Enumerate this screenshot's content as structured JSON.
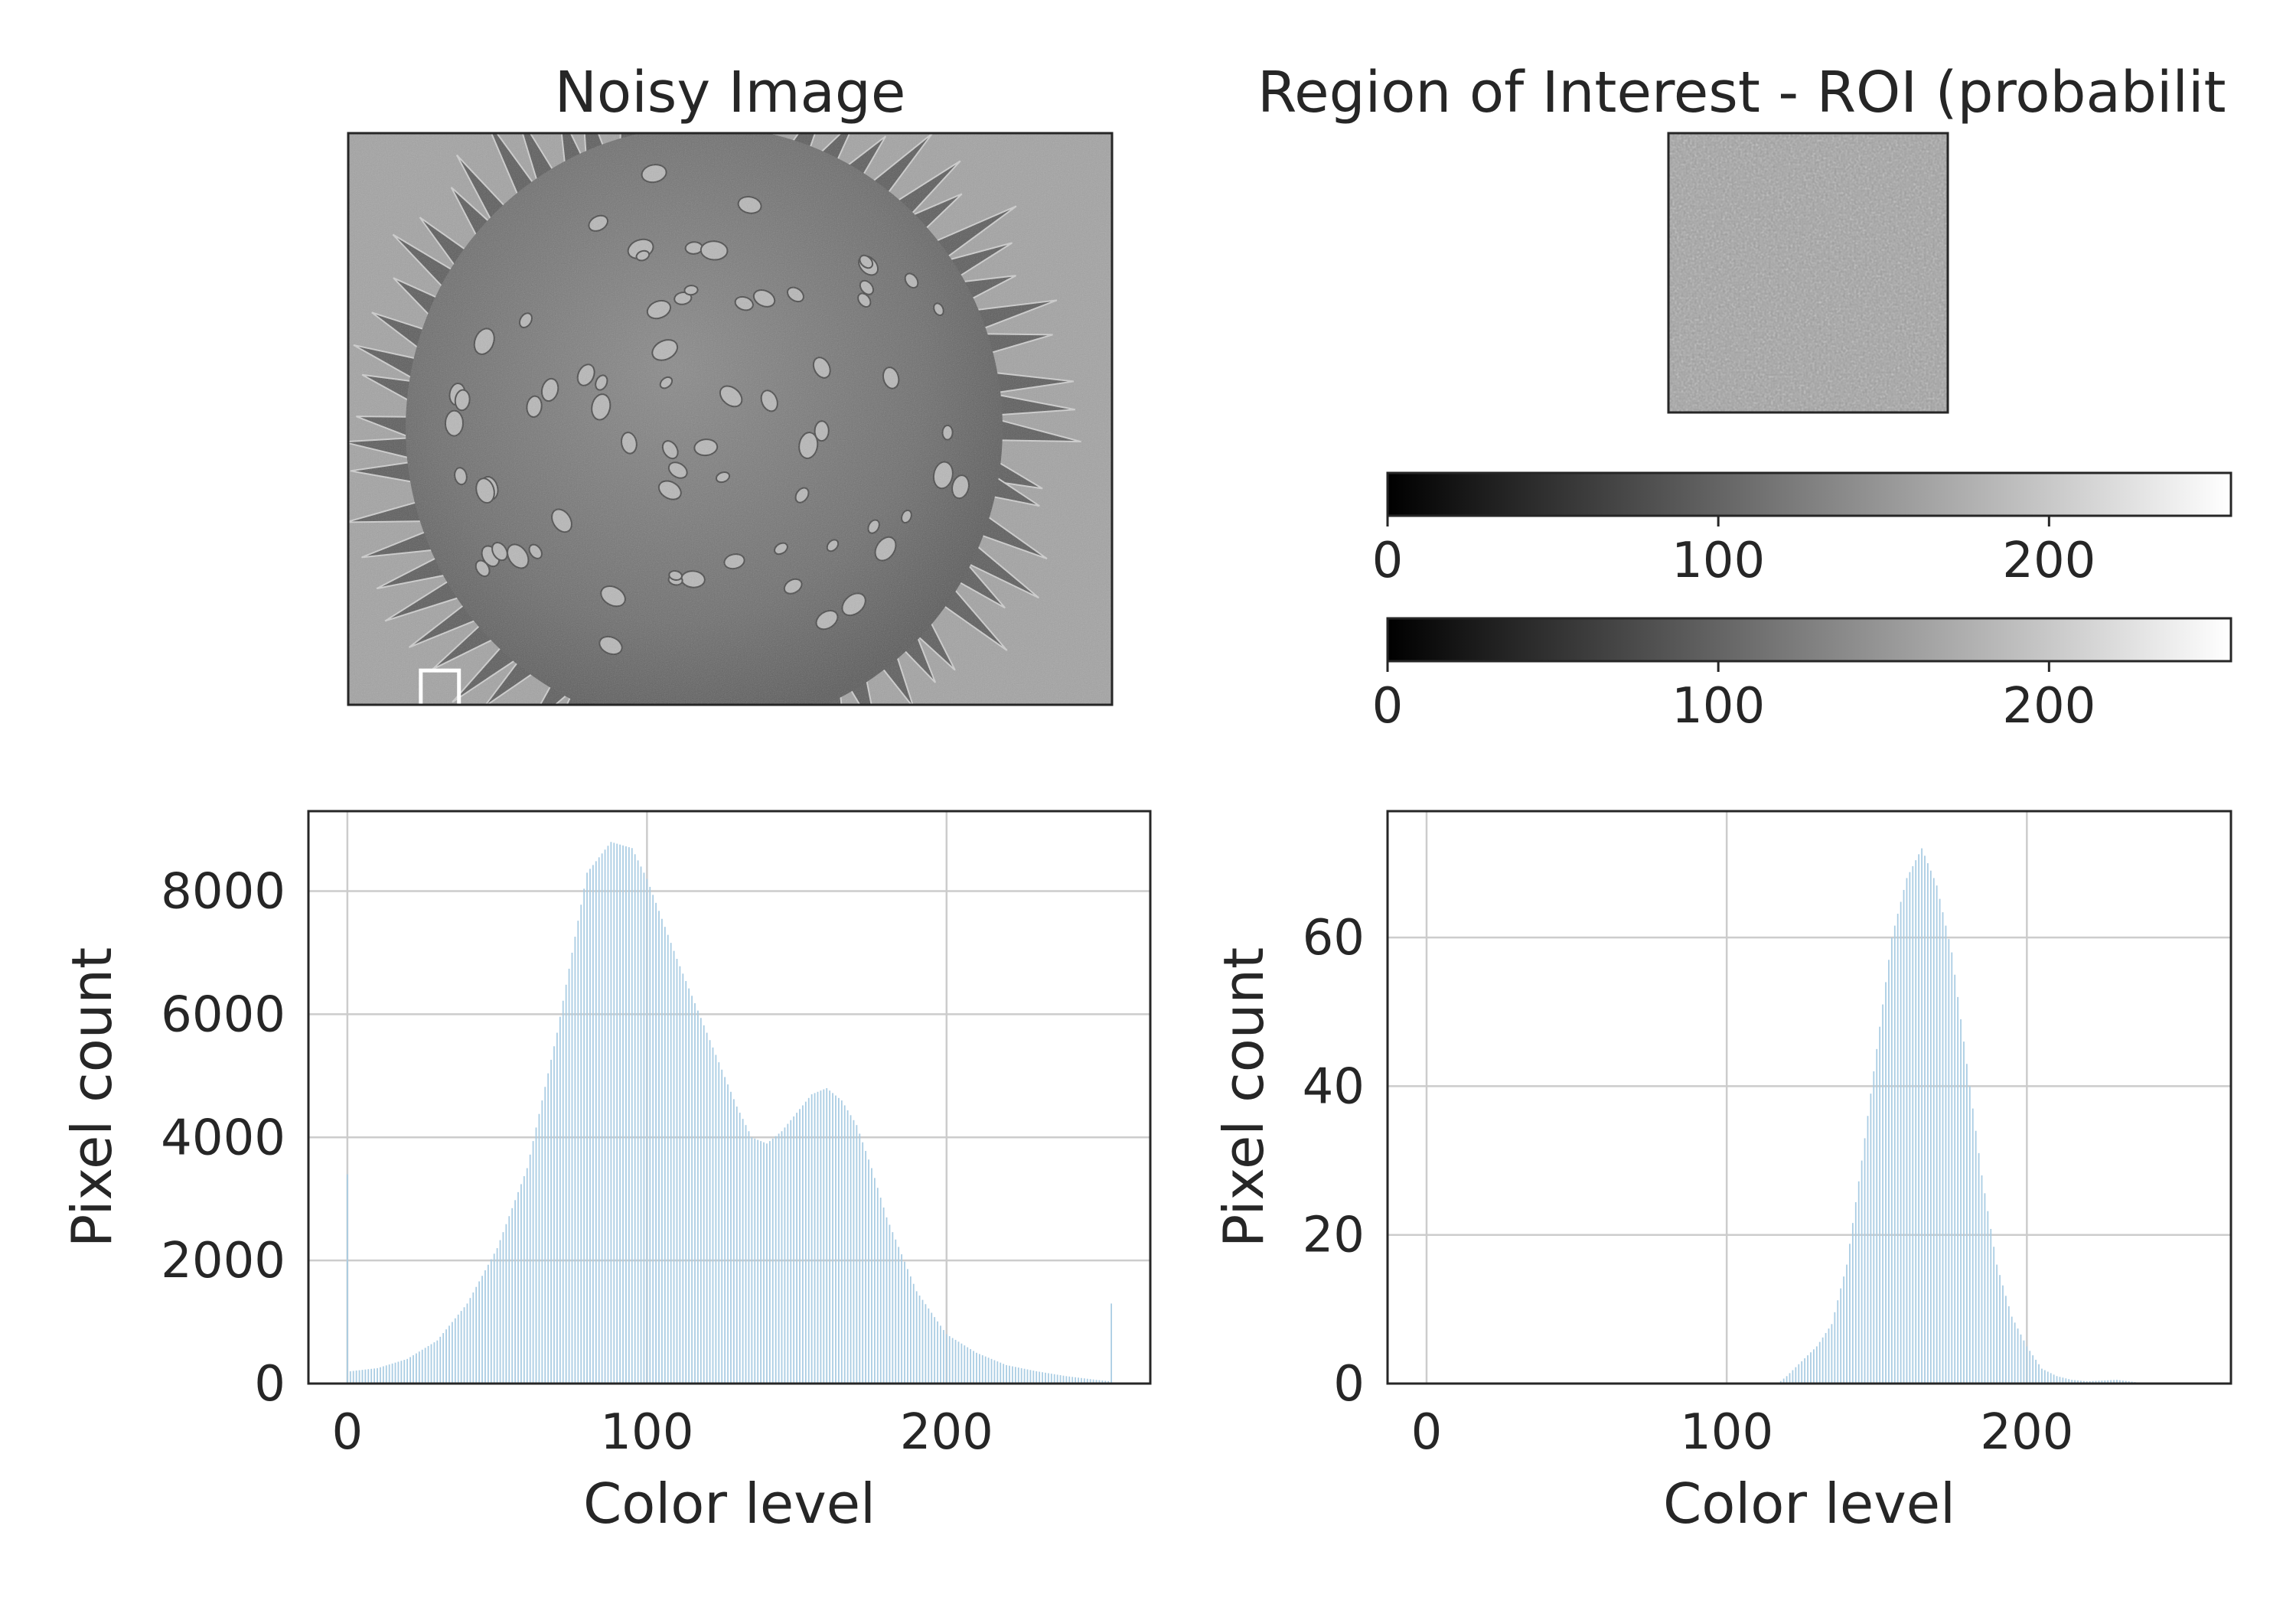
{
  "chart_data": [
    {
      "type": "heatmap",
      "title": "Noisy Image",
      "roi_marker": {
        "x_frac": 0.095,
        "y_frac": 0.94,
        "w_frac": 0.05,
        "h_frac": 0.06
      }
    },
    {
      "type": "heatmap",
      "title": "Region of Interest - ROI (probabilit",
      "colormap": "gray",
      "colorbars": [
        {
          "min": 0,
          "max": 255,
          "ticks": [
            0,
            100,
            200
          ]
        },
        {
          "min": 0,
          "max": 255,
          "ticks": [
            0,
            100,
            200
          ]
        }
      ]
    },
    {
      "type": "bar",
      "title": "",
      "xlabel": "Color level",
      "ylabel": "Pixel count",
      "xlim": [
        -13,
        268
      ],
      "ylim": [
        0,
        9300
      ],
      "xticks": [
        0,
        100,
        200
      ],
      "yticks": [
        0,
        2000,
        4000,
        6000,
        8000
      ],
      "grid": true,
      "color": "#a9cce3",
      "x": [
        0,
        255
      ],
      "keypoints": [
        [
          1,
          200
        ],
        [
          10,
          250
        ],
        [
          20,
          400
        ],
        [
          30,
          700
        ],
        [
          40,
          1300
        ],
        [
          50,
          2200
        ],
        [
          60,
          3500
        ],
        [
          70,
          5700
        ],
        [
          80,
          8300
        ],
        [
          88,
          8800
        ],
        [
          95,
          8700
        ],
        [
          100,
          8200
        ],
        [
          110,
          6900
        ],
        [
          120,
          5700
        ],
        [
          130,
          4500
        ],
        [
          135,
          4000
        ],
        [
          140,
          3900
        ],
        [
          145,
          4100
        ],
        [
          150,
          4400
        ],
        [
          155,
          4700
        ],
        [
          160,
          4800
        ],
        [
          165,
          4600
        ],
        [
          170,
          4200
        ],
        [
          175,
          3500
        ],
        [
          180,
          2700
        ],
        [
          190,
          1500
        ],
        [
          200,
          800
        ],
        [
          210,
          500
        ],
        [
          220,
          300
        ],
        [
          230,
          200
        ],
        [
          240,
          120
        ],
        [
          250,
          60
        ],
        [
          254,
          40
        ]
      ],
      "spikes": [
        {
          "x": 0,
          "value": 3400
        },
        {
          "x": 255,
          "value": 1300
        }
      ]
    },
    {
      "type": "bar",
      "title": "",
      "xlabel": "Color level",
      "ylabel": "Pixel count",
      "xlim": [
        -13,
        268
      ],
      "ylim": [
        0,
        77
      ],
      "xticks": [
        0,
        100,
        200
      ],
      "yticks": [
        0,
        20,
        40,
        60
      ],
      "grid": true,
      "color": "#a9cce3",
      "x": [
        0,
        255
      ],
      "keypoints": [
        [
          117,
          0
        ],
        [
          120,
          1
        ],
        [
          125,
          3
        ],
        [
          130,
          5
        ],
        [
          135,
          8
        ],
        [
          140,
          16
        ],
        [
          145,
          30
        ],
        [
          150,
          45
        ],
        [
          155,
          60
        ],
        [
          160,
          68
        ],
        [
          165,
          72
        ],
        [
          170,
          67
        ],
        [
          175,
          58
        ],
        [
          180,
          43
        ],
        [
          185,
          28
        ],
        [
          190,
          16
        ],
        [
          195,
          9
        ],
        [
          200,
          5
        ],
        [
          205,
          2
        ],
        [
          210,
          1
        ],
        [
          215,
          0.5
        ],
        [
          220,
          0.3
        ],
        [
          230,
          0.5
        ],
        [
          240,
          0
        ]
      ]
    }
  ]
}
